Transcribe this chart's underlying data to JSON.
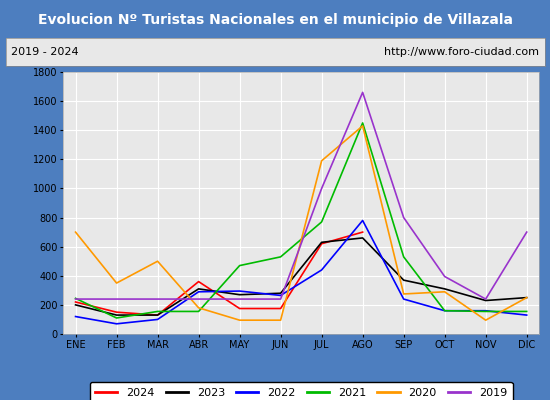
{
  "title": "Evolucion Nº Turistas Nacionales en el municipio de Villazala",
  "subtitle_left": "2019 - 2024",
  "subtitle_right": "http://www.foro-ciudad.com",
  "title_bg_color": "#4d7ebf",
  "title_text_color": "#ffffff",
  "subtitle_bg_color": "#e8e8e8",
  "plot_bg_color": "#e8e8e8",
  "outer_border_color": "#4d7ebf",
  "months": [
    "ENE",
    "FEB",
    "MAR",
    "ABR",
    "MAY",
    "JUN",
    "JUL",
    "AGO",
    "SEP",
    "OCT",
    "NOV",
    "DIC"
  ],
  "ylim": [
    0,
    1800
  ],
  "yticks": [
    0,
    200,
    400,
    600,
    800,
    1000,
    1200,
    1400,
    1600,
    1800
  ],
  "series": {
    "2024": {
      "color": "#ff0000",
      "data": [
        220,
        150,
        130,
        360,
        175,
        175,
        620,
        700,
        null,
        null,
        null,
        null
      ]
    },
    "2023": {
      "color": "#000000",
      "data": [
        200,
        130,
        130,
        310,
        270,
        280,
        630,
        660,
        370,
        310,
        230,
        250
      ]
    },
    "2022": {
      "color": "#0000ff",
      "data": [
        120,
        70,
        100,
        290,
        295,
        265,
        440,
        780,
        240,
        160,
        160,
        130
      ]
    },
    "2021": {
      "color": "#00bb00",
      "data": [
        245,
        110,
        155,
        155,
        470,
        530,
        770,
        1450,
        530,
        160,
        155,
        155
      ]
    },
    "2020": {
      "color": "#ff9900",
      "data": [
        700,
        350,
        500,
        180,
        95,
        95,
        1190,
        1430,
        275,
        290,
        95,
        250
      ]
    },
    "2019": {
      "color": "#9933cc",
      "data": [
        240,
        240,
        240,
        240,
        240,
        240,
        1000,
        1660,
        800,
        395,
        240,
        700
      ]
    }
  },
  "legend_order": [
    "2024",
    "2023",
    "2022",
    "2021",
    "2020",
    "2019"
  ],
  "grid_color": "#ffffff",
  "tick_fontsize": 7,
  "title_fontsize": 10,
  "subtitle_fontsize": 8
}
